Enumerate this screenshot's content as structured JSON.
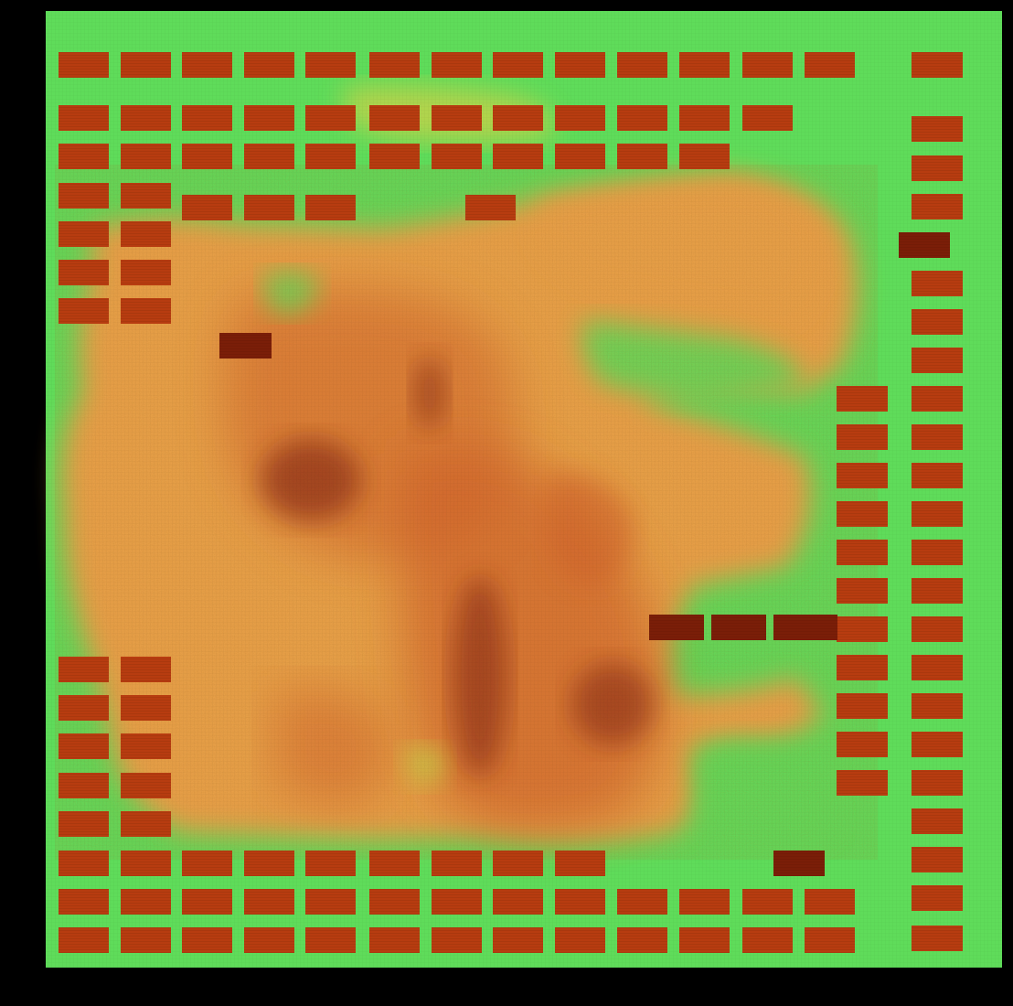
{
  "view": {
    "kind": "chip layout congestion heatmap",
    "colors": {
      "background": "#000000",
      "low": "#5fdc5a",
      "mid_low": "#c8d24a",
      "mid": "#e9a24a",
      "high": "#d2622a",
      "macro": "#b73c10",
      "macro_dark": "#7a1e08",
      "hotspot": "#8a2a12"
    },
    "macro_layout": {
      "top_row_count": 14,
      "left_column_count": 7,
      "right_column_count": 18,
      "bottom_row_count": 14,
      "inner_right_column_count": 11
    }
  },
  "chart_data": {
    "type": "heatmap",
    "title": "",
    "xlabel": "",
    "ylabel": "",
    "colormap": "green-yellow-orange-red",
    "grid": false,
    "legend": "none",
    "hotspots": [
      {
        "name": "",
        "level": 0.95
      },
      {
        "name": "",
        "level": 0.9
      },
      {
        "name": "",
        "level": 0.85
      },
      {
        "name": "",
        "level": 0.8
      }
    ]
  }
}
